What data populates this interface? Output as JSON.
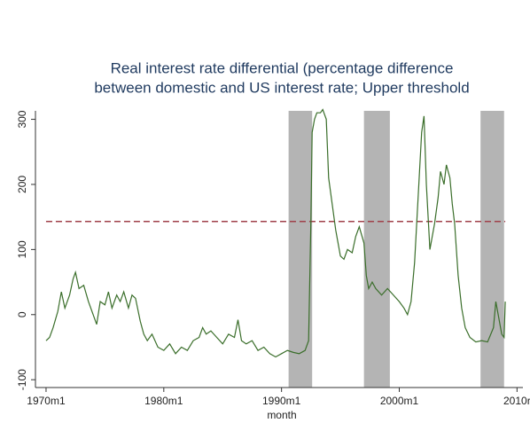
{
  "chart_data": {
    "type": "line",
    "title": [
      "Real interest rate differential (percentage difference",
      "between domestic and US interest rate; Upper threshold"
    ],
    "x_label": "month",
    "x": [
      1970.0,
      1970.3,
      1970.6,
      1971.0,
      1971.3,
      1971.6,
      1972.0,
      1972.3,
      1972.5,
      1972.8,
      1973.2,
      1973.6,
      1974.0,
      1974.3,
      1974.6,
      1975.0,
      1975.3,
      1975.6,
      1976.0,
      1976.3,
      1976.6,
      1977.0,
      1977.3,
      1977.6,
      1978.0,
      1978.3,
      1978.6,
      1979.0,
      1979.5,
      1980.0,
      1980.5,
      1981.0,
      1981.5,
      1982.0,
      1982.5,
      1983.0,
      1983.3,
      1983.6,
      1984.0,
      1984.5,
      1985.0,
      1985.5,
      1986.0,
      1986.3,
      1986.6,
      1987.0,
      1987.5,
      1988.0,
      1988.5,
      1989.0,
      1989.5,
      1990.0,
      1990.5,
      1991.0,
      1991.5,
      1992.0,
      1992.3,
      1992.5,
      1992.6,
      1992.8,
      1993.0,
      1993.3,
      1993.5,
      1993.8,
      1994.0,
      1994.3,
      1994.6,
      1995.0,
      1995.3,
      1995.6,
      1996.0,
      1996.3,
      1996.6,
      1997.0,
      1997.2,
      1997.4,
      1997.7,
      1998.0,
      1998.5,
      1999.0,
      1999.5,
      2000.0,
      2000.4,
      2000.7,
      2001.0,
      2001.3,
      2001.6,
      2001.9,
      2002.1,
      2002.3,
      2002.6,
      2003.0,
      2003.3,
      2003.5,
      2003.8,
      2004.0,
      2004.3,
      2004.5,
      2004.7,
      2005.0,
      2005.3,
      2005.6,
      2006.0,
      2006.5,
      2007.0,
      2007.5,
      2008.0,
      2008.2,
      2008.4,
      2008.7,
      2008.9,
      2009.0
    ],
    "series": [
      {
        "name": "Real interest rate differential",
        "color": "#3a6e2a",
        "values": [
          -40,
          -35,
          -20,
          5,
          35,
          10,
          30,
          55,
          65,
          40,
          45,
          20,
          0,
          -15,
          20,
          15,
          35,
          10,
          30,
          20,
          35,
          10,
          30,
          25,
          -10,
          -30,
          -40,
          -30,
          -50,
          -55,
          -45,
          -60,
          -50,
          -55,
          -40,
          -35,
          -20,
          -30,
          -25,
          -35,
          -45,
          -30,
          -35,
          -8,
          -40,
          -45,
          -40,
          -55,
          -50,
          -60,
          -65,
          -60,
          -55,
          -58,
          -60,
          -55,
          -40,
          150,
          280,
          300,
          310,
          310,
          315,
          300,
          210,
          170,
          130,
          90,
          85,
          100,
          95,
          120,
          135,
          110,
          60,
          40,
          50,
          40,
          30,
          40,
          30,
          20,
          10,
          0,
          20,
          80,
          180,
          280,
          305,
          200,
          100,
          140,
          180,
          220,
          200,
          230,
          210,
          170,
          140,
          60,
          10,
          -20,
          -35,
          -42,
          -40,
          -42,
          -20,
          20,
          0,
          -30,
          -35,
          20
        ]
      }
    ],
    "threshold": 143,
    "threshold_color": "#a0404a",
    "shaded": [
      [
        1990.6,
        1992.6
      ],
      [
        1997.0,
        1999.2
      ],
      [
        2006.9,
        2008.9
      ]
    ],
    "shade_color": "#b4b4b4",
    "xlim": [
      1969.1,
      2010.5
    ],
    "xticks": [
      {
        "value": 1970,
        "label": "1970m1"
      },
      {
        "value": 1980,
        "label": "1980m1"
      },
      {
        "value": 1990,
        "label": "1990m1"
      },
      {
        "value": 2000,
        "label": "2000m1"
      },
      {
        "value": 2010,
        "label": "2010r"
      }
    ],
    "ylim": [
      -112,
      313
    ],
    "yticks": [
      -100,
      0,
      100,
      200,
      300
    ]
  }
}
